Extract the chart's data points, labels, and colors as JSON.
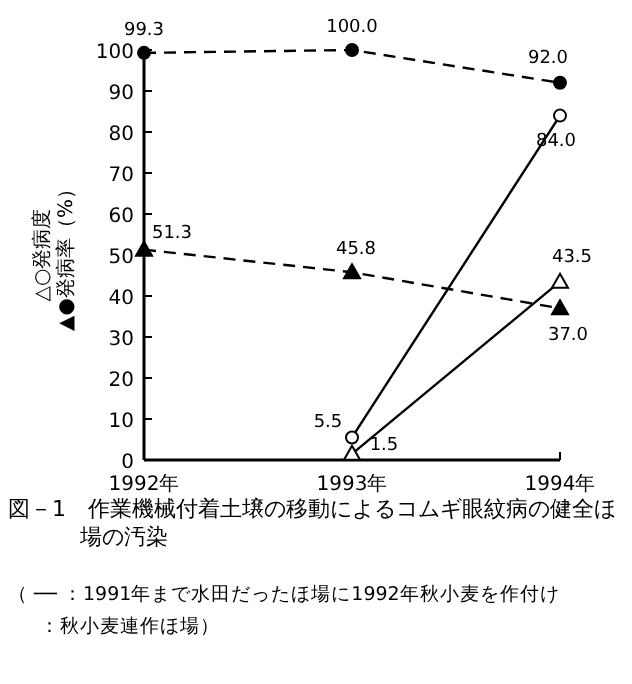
{
  "chart_data": {
    "type": "line",
    "title": "図－1　作業機械付着土壌の移動によるコムギ眼紋病の健全ほ場の汚染",
    "ylabel": "△○発病度\n▲●発病率（%）",
    "categories": [
      "1992年",
      "1993年",
      "1994年"
    ],
    "series": [
      {
        "color": "#000000",
        "marker": "circle",
        "line_style": "dashed",
        "values": [
          99.3,
          100.0,
          92.0
        ],
        "value_labels": [
          "99.3",
          "100.0",
          "92.0"
        ]
      },
      {
        "color": "#000000",
        "marker": "triangle",
        "line_style": "dashed",
        "values": [
          51.3,
          45.8,
          37.0
        ],
        "value_labels": [
          "51.3",
          "45.8",
          "37.0"
        ]
      },
      {
        "color": "#000000",
        "marker": "circle",
        "line_style": "solid",
        "values": [
          null,
          5.5,
          84.0
        ],
        "value_labels": [
          null,
          "5.5",
          "84.0"
        ]
      },
      {
        "color": "#000000",
        "marker": "triangle",
        "line_style": "solid",
        "values": [
          null,
          1.5,
          43.5
        ],
        "value_labels": [
          null,
          "1.5",
          "43.5"
        ]
      }
    ],
    "ylim": [
      0,
      100
    ],
    "yticks": [
      0,
      10,
      20,
      30,
      40,
      50,
      60,
      70,
      80,
      90,
      100
    ],
    "grid": false,
    "annotations": [
      "（ ── ：1991年まで水田だったほ場に1992年秋小麦を作付け",
      "：秋小麦連作ほ場）"
    ]
  }
}
